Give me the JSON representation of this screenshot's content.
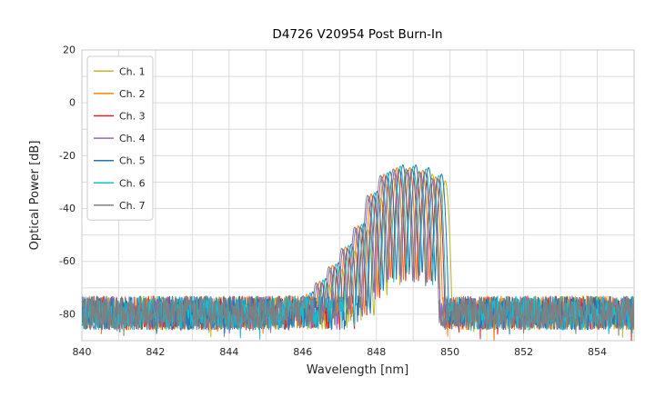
{
  "chart_data": {
    "type": "line",
    "title": "D4726 V20954 Post Burn-In",
    "xlabel": "Wavelength [nm]",
    "ylabel": "Optical Power [dB]",
    "xlim": [
      840,
      855
    ],
    "ylim": [
      -90,
      20
    ],
    "xticks": [
      840,
      842,
      844,
      846,
      848,
      850,
      852,
      854
    ],
    "yticks": [
      20,
      0,
      -20,
      -40,
      -60,
      -80
    ],
    "grid": {
      "on": true,
      "x_step_nm": 1,
      "y_step_db": 10,
      "color": "#dcdcdc"
    },
    "legend_position": "upper left",
    "noise_floor": {
      "mean_db": -79.5,
      "peak_to_peak_db": 13
    },
    "mode_spacing_nm": 0.35,
    "mode_curvature_db_per_nm2": 1400,
    "modes": [
      [
        845.8,
        -77.0
      ],
      [
        846.15,
        -72.0
      ],
      [
        846.5,
        -67.0
      ],
      [
        846.85,
        -61.0
      ],
      [
        847.2,
        -54.0
      ],
      [
        847.55,
        -46.0
      ],
      [
        847.9,
        -34.0
      ],
      [
        848.25,
        -26.5
      ],
      [
        848.6,
        -24.0
      ],
      [
        848.95,
        -24.0
      ],
      [
        849.3,
        -25.0
      ],
      [
        849.65,
        -27.5
      ]
    ],
    "series": [
      {
        "name": "Ch. 1",
        "color": "#bcbd22",
        "wavelength_offset_nm": 0.22,
        "power_delta_db": -2.0,
        "seed": 101
      },
      {
        "name": "Ch. 2",
        "color": "#ff7f0e",
        "wavelength_offset_nm": -0.04,
        "power_delta_db": -0.5,
        "seed": 102
      },
      {
        "name": "Ch. 3",
        "color": "#d62728",
        "wavelength_offset_nm": 0.02,
        "power_delta_db": -1.0,
        "seed": 103
      },
      {
        "name": "Ch. 4",
        "color": "#9467bd",
        "wavelength_offset_nm": -0.1,
        "power_delta_db": -1.5,
        "seed": 104
      },
      {
        "name": "Ch. 5",
        "color": "#1f77b4",
        "wavelength_offset_nm": 0.12,
        "power_delta_db": 0.5,
        "seed": 105
      },
      {
        "name": "Ch. 6",
        "color": "#17becf",
        "wavelength_offset_nm": 0.05,
        "power_delta_db": 0.0,
        "seed": 106
      },
      {
        "name": "Ch. 7",
        "color": "#7f7f7f",
        "wavelength_offset_nm": -0.14,
        "power_delta_db": -1.0,
        "seed": 107
      }
    ]
  }
}
